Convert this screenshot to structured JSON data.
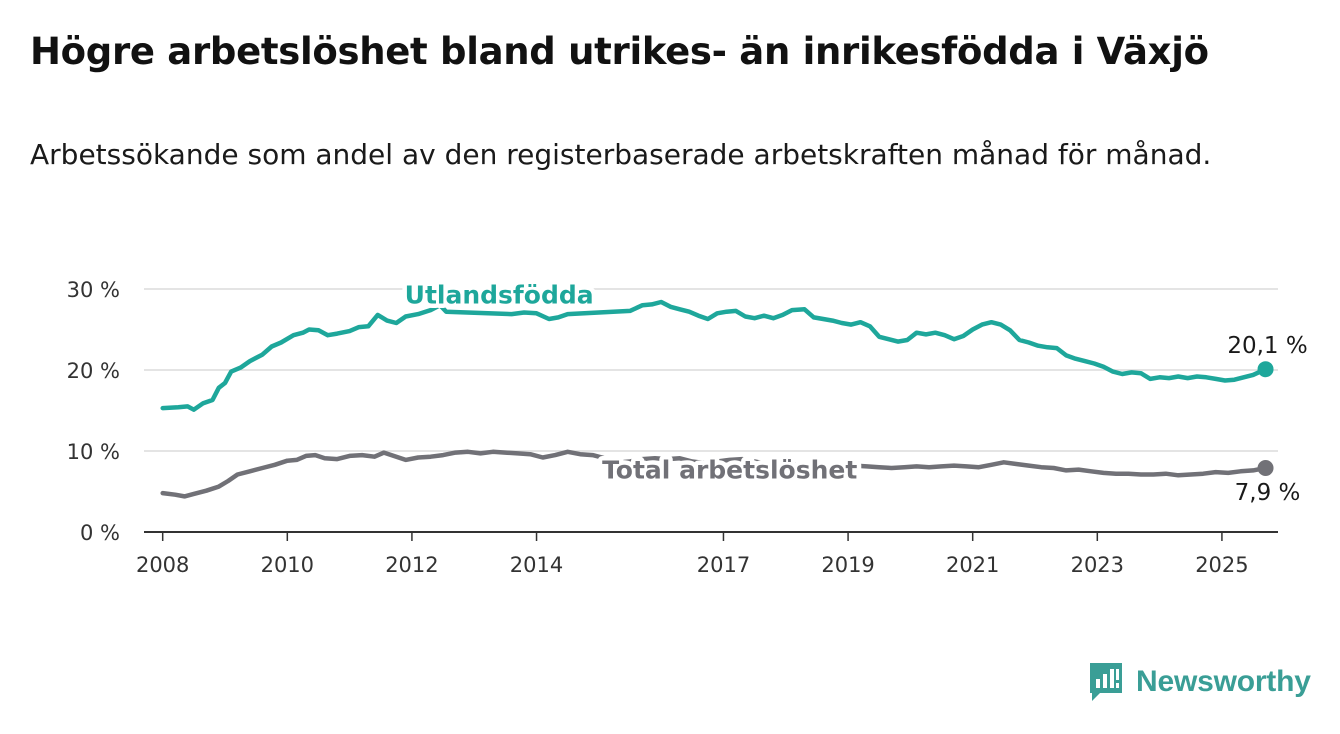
{
  "title": "Högre arbetslöshet bland utrikes- än inrikesfödda i Växjö",
  "subtitle": "Arbetssökande som andel av den registerbaserade arbetskraften månad för månad.",
  "brand": {
    "name": "Newsworthy",
    "icon": "newsworthy-logo-icon",
    "color": "#3a9e96"
  },
  "chart_data": {
    "type": "line",
    "title": "Högre arbetslöshet bland utrikes- än inrikesfödda i Växjö",
    "subtitle": "Arbetssökande som andel av den registerbaserade arbetskraften månad för månad.",
    "xlabel": "",
    "ylabel": "",
    "xlim": [
      2007.7,
      2025.9
    ],
    "ylim": [
      0,
      30
    ],
    "x_ticks": [
      2008,
      2010,
      2012,
      2014,
      2017,
      2019,
      2021,
      2023,
      2025
    ],
    "x_tick_labels": [
      "2008",
      "2010",
      "2012",
      "2014",
      "2017",
      "2019",
      "2021",
      "2023",
      "2025"
    ],
    "y_ticks": [
      0,
      10,
      20,
      30
    ],
    "y_tick_labels": [
      "0 %",
      "10 %",
      "20 %",
      "30 %"
    ],
    "grid": "horizontal",
    "legend": "inline labels",
    "series": [
      {
        "name": "Utlandsfödda",
        "color": "#1ea79b",
        "end_label": "20,1 %",
        "label_x": 2013.4,
        "label_y": 28.2,
        "points": [
          [
            2008.0,
            15.3
          ],
          [
            2008.25,
            15.4
          ],
          [
            2008.4,
            15.5
          ],
          [
            2008.5,
            15.1
          ],
          [
            2008.65,
            15.9
          ],
          [
            2008.8,
            16.3
          ],
          [
            2008.9,
            17.8
          ],
          [
            2009.0,
            18.4
          ],
          [
            2009.1,
            19.8
          ],
          [
            2009.25,
            20.3
          ],
          [
            2009.4,
            21.1
          ],
          [
            2009.6,
            21.9
          ],
          [
            2009.75,
            22.9
          ],
          [
            2009.9,
            23.4
          ],
          [
            2010.1,
            24.3
          ],
          [
            2010.25,
            24.6
          ],
          [
            2010.35,
            25.0
          ],
          [
            2010.5,
            24.9
          ],
          [
            2010.65,
            24.3
          ],
          [
            2010.8,
            24.5
          ],
          [
            2011.0,
            24.8
          ],
          [
            2011.15,
            25.3
          ],
          [
            2011.3,
            25.4
          ],
          [
            2011.45,
            26.8
          ],
          [
            2011.6,
            26.1
          ],
          [
            2011.75,
            25.8
          ],
          [
            2011.9,
            26.6
          ],
          [
            2012.1,
            26.9
          ],
          [
            2012.3,
            27.4
          ],
          [
            2012.45,
            28.0
          ],
          [
            2012.55,
            27.2
          ],
          [
            2013.6,
            26.9
          ],
          [
            2013.8,
            27.1
          ],
          [
            2014.0,
            27.0
          ],
          [
            2014.2,
            26.3
          ],
          [
            2014.35,
            26.5
          ],
          [
            2014.5,
            26.9
          ],
          [
            2015.0,
            27.1
          ],
          [
            2015.5,
            27.3
          ],
          [
            2015.7,
            28.0
          ],
          [
            2015.85,
            28.1
          ],
          [
            2016.0,
            28.4
          ],
          [
            2016.15,
            27.8
          ],
          [
            2016.3,
            27.5
          ],
          [
            2016.45,
            27.2
          ],
          [
            2016.6,
            26.7
          ],
          [
            2016.75,
            26.3
          ],
          [
            2016.9,
            27.0
          ],
          [
            2017.05,
            27.2
          ],
          [
            2017.2,
            27.3
          ],
          [
            2017.35,
            26.6
          ],
          [
            2017.5,
            26.4
          ],
          [
            2017.65,
            26.7
          ],
          [
            2017.8,
            26.4
          ],
          [
            2017.95,
            26.8
          ],
          [
            2018.1,
            27.4
          ],
          [
            2018.3,
            27.5
          ],
          [
            2018.45,
            26.5
          ],
          [
            2018.6,
            26.3
          ],
          [
            2018.75,
            26.1
          ],
          [
            2018.9,
            25.8
          ],
          [
            2019.05,
            25.6
          ],
          [
            2019.2,
            25.9
          ],
          [
            2019.35,
            25.4
          ],
          [
            2019.5,
            24.1
          ],
          [
            2019.65,
            23.8
          ],
          [
            2019.8,
            23.5
          ],
          [
            2019.95,
            23.7
          ],
          [
            2020.1,
            24.6
          ],
          [
            2020.25,
            24.4
          ],
          [
            2020.4,
            24.6
          ],
          [
            2020.55,
            24.3
          ],
          [
            2020.7,
            23.8
          ],
          [
            2020.85,
            24.2
          ],
          [
            2021.0,
            25.0
          ],
          [
            2021.15,
            25.6
          ],
          [
            2021.3,
            25.9
          ],
          [
            2021.45,
            25.6
          ],
          [
            2021.6,
            24.9
          ],
          [
            2021.75,
            23.7
          ],
          [
            2021.9,
            23.4
          ],
          [
            2022.05,
            23.0
          ],
          [
            2022.2,
            22.8
          ],
          [
            2022.35,
            22.7
          ],
          [
            2022.5,
            21.8
          ],
          [
            2022.65,
            21.4
          ],
          [
            2022.8,
            21.1
          ],
          [
            2022.95,
            20.8
          ],
          [
            2023.1,
            20.4
          ],
          [
            2023.25,
            19.8
          ],
          [
            2023.4,
            19.5
          ],
          [
            2023.55,
            19.7
          ],
          [
            2023.7,
            19.6
          ],
          [
            2023.85,
            18.9
          ],
          [
            2024.0,
            19.1
          ],
          [
            2024.15,
            19.0
          ],
          [
            2024.3,
            19.2
          ],
          [
            2024.45,
            19.0
          ],
          [
            2024.6,
            19.2
          ],
          [
            2024.75,
            19.1
          ],
          [
            2024.9,
            18.9
          ],
          [
            2025.05,
            18.7
          ],
          [
            2025.2,
            18.8
          ],
          [
            2025.35,
            19.1
          ],
          [
            2025.5,
            19.4
          ],
          [
            2025.7,
            20.1
          ]
        ]
      },
      {
        "name": "Total arbetslöshet",
        "color": "#717177",
        "end_label": "7,9 %",
        "label_x": 2017.1,
        "label_y": 6.6,
        "points": [
          [
            2008.0,
            4.8
          ],
          [
            2008.2,
            4.6
          ],
          [
            2008.35,
            4.4
          ],
          [
            2008.5,
            4.7
          ],
          [
            2008.7,
            5.1
          ],
          [
            2008.9,
            5.6
          ],
          [
            2009.05,
            6.3
          ],
          [
            2009.2,
            7.1
          ],
          [
            2009.4,
            7.5
          ],
          [
            2009.6,
            7.9
          ],
          [
            2009.8,
            8.3
          ],
          [
            2010.0,
            8.8
          ],
          [
            2010.15,
            8.9
          ],
          [
            2010.3,
            9.4
          ],
          [
            2010.45,
            9.5
          ],
          [
            2010.6,
            9.1
          ],
          [
            2010.8,
            9.0
          ],
          [
            2011.0,
            9.4
          ],
          [
            2011.2,
            9.5
          ],
          [
            2011.4,
            9.3
          ],
          [
            2011.55,
            9.8
          ],
          [
            2011.75,
            9.3
          ],
          [
            2011.9,
            8.9
          ],
          [
            2012.1,
            9.2
          ],
          [
            2012.3,
            9.3
          ],
          [
            2012.5,
            9.5
          ],
          [
            2012.7,
            9.8
          ],
          [
            2012.9,
            9.9
          ],
          [
            2013.1,
            9.7
          ],
          [
            2013.3,
            9.9
          ],
          [
            2013.5,
            9.8
          ],
          [
            2013.7,
            9.7
          ],
          [
            2013.9,
            9.6
          ],
          [
            2014.1,
            9.2
          ],
          [
            2014.3,
            9.5
          ],
          [
            2014.5,
            9.9
          ],
          [
            2014.7,
            9.6
          ],
          [
            2014.9,
            9.5
          ],
          [
            2015.05,
            9.2
          ],
          [
            2015.2,
            8.8
          ],
          [
            2015.35,
            8.6
          ],
          [
            2015.5,
            8.7
          ],
          [
            2015.7,
            9.0
          ],
          [
            2015.9,
            9.1
          ],
          [
            2016.1,
            9.0
          ],
          [
            2016.3,
            9.1
          ],
          [
            2016.5,
            8.7
          ],
          [
            2016.7,
            8.5
          ],
          [
            2016.9,
            8.7
          ],
          [
            2017.1,
            8.9
          ],
          [
            2017.3,
            9.0
          ],
          [
            2017.5,
            8.7
          ],
          [
            2017.7,
            8.4
          ],
          [
            2017.9,
            8.2
          ],
          [
            2018.1,
            8.3
          ],
          [
            2018.3,
            8.4
          ],
          [
            2018.5,
            8.2
          ],
          [
            2018.7,
            8.2
          ],
          [
            2018.9,
            8.1
          ],
          [
            2019.1,
            8.2
          ],
          [
            2019.3,
            8.1
          ],
          [
            2019.5,
            8.0
          ],
          [
            2019.7,
            7.9
          ],
          [
            2019.9,
            8.0
          ],
          [
            2020.1,
            8.1
          ],
          [
            2020.3,
            8.0
          ],
          [
            2020.5,
            8.1
          ],
          [
            2020.7,
            8.2
          ],
          [
            2020.9,
            8.1
          ],
          [
            2021.1,
            8.0
          ],
          [
            2021.3,
            8.3
          ],
          [
            2021.5,
            8.6
          ],
          [
            2021.7,
            8.4
          ],
          [
            2021.9,
            8.2
          ],
          [
            2022.1,
            8.0
          ],
          [
            2022.3,
            7.9
          ],
          [
            2022.5,
            7.6
          ],
          [
            2022.7,
            7.7
          ],
          [
            2022.9,
            7.5
          ],
          [
            2023.1,
            7.3
          ],
          [
            2023.3,
            7.2
          ],
          [
            2023.5,
            7.2
          ],
          [
            2023.7,
            7.1
          ],
          [
            2023.9,
            7.1
          ],
          [
            2024.1,
            7.2
          ],
          [
            2024.3,
            7.0
          ],
          [
            2024.5,
            7.1
          ],
          [
            2024.7,
            7.2
          ],
          [
            2024.9,
            7.4
          ],
          [
            2025.1,
            7.3
          ],
          [
            2025.3,
            7.5
          ],
          [
            2025.5,
            7.6
          ],
          [
            2025.7,
            7.9
          ]
        ]
      }
    ]
  }
}
